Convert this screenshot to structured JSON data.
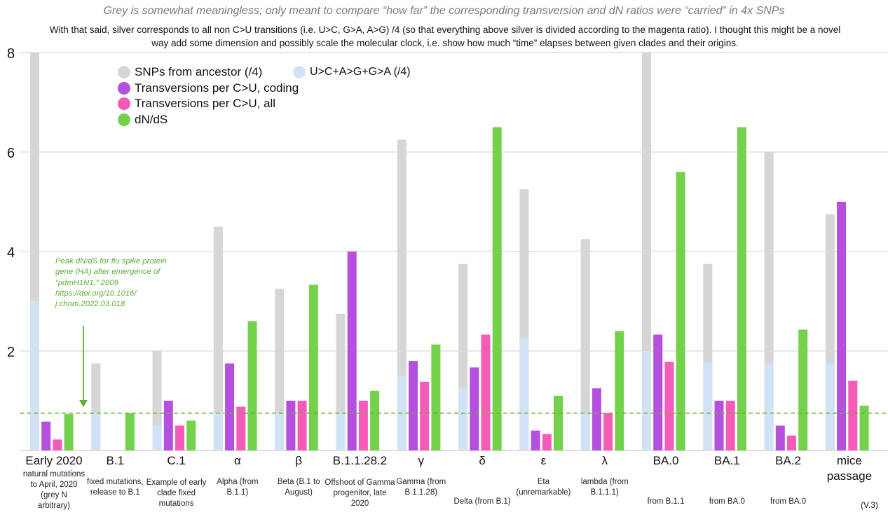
{
  "title": "Grey is somewhat meaningless; only meant to compare “how far” the corresponding transversion and dN ratios were “carried” in 4x SNPs",
  "subtitle": "With that said, silver corresponds to all non C>U transitions (i.e. U>C, G>A, A>G) /4 (so that everything above silver is divided according to the magenta ratio). I thought this might be a novel way add some dimension and possibly scale the molecular clock, i.e. show how much “time” elapses between given clades and their origins.",
  "legend": [
    {
      "label": "SNPs from ancestor (/4)",
      "color": "#d6d6d6"
    },
    {
      "label": "Transversions per C>U, coding",
      "color": "#b44fe0"
    },
    {
      "label": "Transversions per C>U, all",
      "color": "#f55bb8"
    },
    {
      "label": "dN/dS",
      "color": "#74d14c"
    }
  ],
  "legend2": {
    "label": "U>C+A>G+G>A (/4)",
    "color": "#d2e2f6"
  },
  "annotation": "Peak dN/dS for flu spike protein gene (HA) after emergence of “pdmH1N1,” 2009 https://doi.org/10.1016/ j.chom.2022.03.018",
  "version": "(V.3)",
  "chart_data": {
    "type": "bar",
    "ylim": [
      0,
      8
    ],
    "yticks": [
      2,
      4,
      6,
      8
    ],
    "reference_line": {
      "y": 0.75,
      "color": "#6ab42e",
      "style": "dashed"
    },
    "colors": {
      "grey": "#d6d6d6",
      "silver": "#d2e2f6",
      "coding": "#b44fe0",
      "all": "#f55bb8",
      "dnds": "#74d14c"
    },
    "categories": [
      "Early 2020",
      "B.1",
      "C.1",
      "α",
      "β",
      "B.1.1.28.2",
      "γ",
      "δ",
      "ε",
      "λ",
      "BA.0",
      "BA.1",
      "BA.2",
      "mice passage"
    ],
    "sublabels": [
      "natural mutations to April, 2020 (grey N arbitrary)",
      "fixed mutations, release to B.1",
      "Example of early clade fixed mutations",
      "Alpha (from B.1.1)",
      "Beta (B.1 to August)",
      "Offshoot of Gamma progenitor, late 2020",
      "Gamma (from B.1.1.28)",
      "Delta (from B.1)",
      "Eta (unremarkable)",
      "lambda (from B.1.1.1)",
      "from B.1.1",
      "from BA.0",
      "from BA.0",
      ""
    ],
    "series": [
      {
        "name": "SNPs from ancestor (/4)",
        "values": [
          8.0,
          1.75,
          2.0,
          4.5,
          3.25,
          2.75,
          6.25,
          3.75,
          5.25,
          4.25,
          8.0,
          3.75,
          6.0,
          4.75
        ]
      },
      {
        "name": "U>C+A>G+G>A (/4)",
        "values": [
          3.0,
          0.75,
          0.5,
          0.75,
          0.75,
          0.75,
          1.5,
          1.25,
          2.25,
          0.75,
          2.0,
          1.75,
          1.75,
          1.75
        ]
      },
      {
        "name": "Transversions per C>U, coding",
        "values": [
          0.58,
          0,
          1.0,
          1.75,
          1.0,
          4.0,
          1.8,
          1.67,
          0.4,
          1.25,
          2.33,
          1.0,
          0.5,
          5.0
        ]
      },
      {
        "name": "Transversions per C>U, all",
        "values": [
          0.22,
          0,
          0.5,
          0.88,
          1.0,
          1.0,
          1.38,
          2.33,
          0.33,
          0.75,
          1.78,
          1.0,
          0.3,
          1.4
        ]
      },
      {
        "name": "dN/dS",
        "values": [
          0.73,
          0.75,
          0.6,
          2.6,
          3.33,
          1.2,
          2.13,
          6.5,
          1.1,
          2.4,
          5.6,
          6.5,
          2.43,
          0.9
        ]
      }
    ]
  }
}
